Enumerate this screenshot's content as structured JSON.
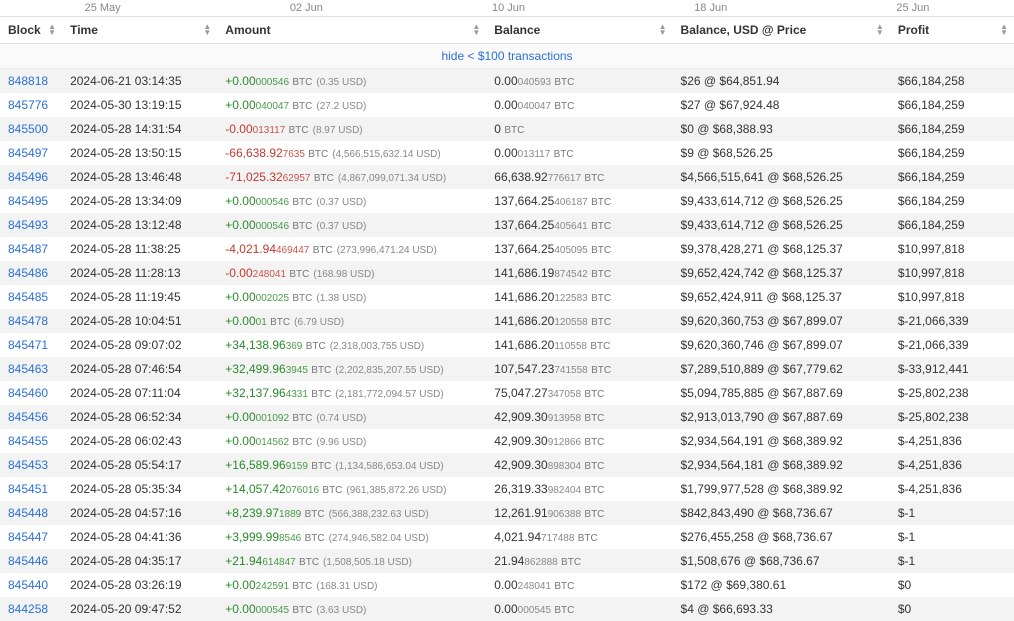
{
  "timeline": [
    "25 May",
    "02 Jun",
    "10 Jun",
    "18 Jun",
    "25 Jun"
  ],
  "headers": {
    "block": "Block",
    "time": "Time",
    "amount": "Amount",
    "balance": "Balance",
    "balance_usd": "Balance, USD @ Price",
    "profit": "Profit"
  },
  "hide_label": "hide < $100 transactions",
  "currency_unit": "BTC",
  "rows": [
    {
      "block": "848818",
      "time": "2024-06-21 03:14:35",
      "amount_sign": "+",
      "amount_int": "0.00",
      "amount_dec": "000546",
      "amount_usd": "(0.35 USD)",
      "balance_int": "0.00",
      "balance_dec": "040593",
      "usd": "$26 @ $64,851.94",
      "profit": "$66,184,258"
    },
    {
      "block": "845776",
      "time": "2024-05-30 13:19:15",
      "amount_sign": "+",
      "amount_int": "0.00",
      "amount_dec": "040047",
      "amount_usd": "(27.2 USD)",
      "balance_int": "0.00",
      "balance_dec": "040047",
      "usd": "$27 @ $67,924.48",
      "profit": "$66,184,259"
    },
    {
      "block": "845500",
      "time": "2024-05-28 14:31:54",
      "amount_sign": "-",
      "amount_int": "0.00",
      "amount_dec": "013117",
      "amount_usd": "(8.97 USD)",
      "balance_int": "0",
      "balance_dec": "",
      "usd": "$0 @ $68,388.93",
      "profit": "$66,184,259"
    },
    {
      "block": "845497",
      "time": "2024-05-28 13:50:15",
      "amount_sign": "-",
      "amount_int": "66,638.92",
      "amount_dec": "7635",
      "amount_usd": "(4,566,515,632.14 USD)",
      "balance_int": "0.00",
      "balance_dec": "013117",
      "usd": "$9 @ $68,526.25",
      "profit": "$66,184,259"
    },
    {
      "block": "845496",
      "time": "2024-05-28 13:46:48",
      "amount_sign": "-",
      "amount_int": "71,025.32",
      "amount_dec": "62957",
      "amount_usd": "(4,867,099,071.34 USD)",
      "balance_int": "66,638.92",
      "balance_dec": "776617",
      "usd": "$4,566,515,641 @ $68,526.25",
      "profit": "$66,184,259"
    },
    {
      "block": "845495",
      "time": "2024-05-28 13:34:09",
      "amount_sign": "+",
      "amount_int": "0.00",
      "amount_dec": "000546",
      "amount_usd": "(0.37 USD)",
      "balance_int": "137,664.25",
      "balance_dec": "406187",
      "usd": "$9,433,614,712 @ $68,526.25",
      "profit": "$66,184,259"
    },
    {
      "block": "845493",
      "time": "2024-05-28 13:12:48",
      "amount_sign": "+",
      "amount_int": "0.00",
      "amount_dec": "000546",
      "amount_usd": "(0.37 USD)",
      "balance_int": "137,664.25",
      "balance_dec": "405641",
      "usd": "$9,433,614,712 @ $68,526.25",
      "profit": "$66,184,259"
    },
    {
      "block": "845487",
      "time": "2024-05-28 11:38:25",
      "amount_sign": "-",
      "amount_int": "4,021.94",
      "amount_dec": "469447",
      "amount_usd": "(273,996,471.24 USD)",
      "balance_int": "137,664.25",
      "balance_dec": "405095",
      "usd": "$9,378,428,271 @ $68,125.37",
      "profit": "$10,997,818"
    },
    {
      "block": "845486",
      "time": "2024-05-28 11:28:13",
      "amount_sign": "-",
      "amount_int": "0.00",
      "amount_dec": "248041",
      "amount_usd": "(168.98 USD)",
      "balance_int": "141,686.19",
      "balance_dec": "874542",
      "usd": "$9,652,424,742 @ $68,125.37",
      "profit": "$10,997,818"
    },
    {
      "block": "845485",
      "time": "2024-05-28 11:19:45",
      "amount_sign": "+",
      "amount_int": "0.00",
      "amount_dec": "002025",
      "amount_usd": "(1.38 USD)",
      "balance_int": "141,686.20",
      "balance_dec": "122583",
      "usd": "$9,652,424,911 @ $68,125.37",
      "profit": "$10,997,818"
    },
    {
      "block": "845478",
      "time": "2024-05-28 10:04:51",
      "amount_sign": "+",
      "amount_int": "0.00",
      "amount_dec": "01",
      "amount_usd": "(6.79 USD)",
      "balance_int": "141,686.20",
      "balance_dec": "120558",
      "usd": "$9,620,360,753 @ $67,899.07",
      "profit": "$-21,066,339"
    },
    {
      "block": "845471",
      "time": "2024-05-28 09:07:02",
      "amount_sign": "+",
      "amount_int": "34,138.96",
      "amount_dec": "369",
      "amount_usd": "(2,318,003,755 USD)",
      "balance_int": "141,686.20",
      "balance_dec": "110558",
      "usd": "$9,620,360,746 @ $67,899.07",
      "profit": "$-21,066,339"
    },
    {
      "block": "845463",
      "time": "2024-05-28 07:46:54",
      "amount_sign": "+",
      "amount_int": "32,499.96",
      "amount_dec": "3945",
      "amount_usd": "(2,202,835,207.55 USD)",
      "balance_int": "107,547.23",
      "balance_dec": "741558",
      "usd": "$7,289,510,889 @ $67,779.62",
      "profit": "$-33,912,441"
    },
    {
      "block": "845460",
      "time": "2024-05-28 07:11:04",
      "amount_sign": "+",
      "amount_int": "32,137.96",
      "amount_dec": "4331",
      "amount_usd": "(2,181,772,094.57 USD)",
      "balance_int": "75,047.27",
      "balance_dec": "347058",
      "usd": "$5,094,785,885 @ $67,887.69",
      "profit": "$-25,802,238"
    },
    {
      "block": "845456",
      "time": "2024-05-28 06:52:34",
      "amount_sign": "+",
      "amount_int": "0.00",
      "amount_dec": "001092",
      "amount_usd": "(0.74 USD)",
      "balance_int": "42,909.30",
      "balance_dec": "913958",
      "usd": "$2,913,013,790 @ $67,887.69",
      "profit": "$-25,802,238"
    },
    {
      "block": "845455",
      "time": "2024-05-28 06:02:43",
      "amount_sign": "+",
      "amount_int": "0.00",
      "amount_dec": "014562",
      "amount_usd": "(9.96 USD)",
      "balance_int": "42,909.30",
      "balance_dec": "912866",
      "usd": "$2,934,564,191 @ $68,389.92",
      "profit": "$-4,251,836"
    },
    {
      "block": "845453",
      "time": "2024-05-28 05:54:17",
      "amount_sign": "+",
      "amount_int": "16,589.96",
      "amount_dec": "9159",
      "amount_usd": "(1,134,586,653.04 USD)",
      "balance_int": "42,909.30",
      "balance_dec": "898304",
      "usd": "$2,934,564,181 @ $68,389.92",
      "profit": "$-4,251,836"
    },
    {
      "block": "845451",
      "time": "2024-05-28 05:35:34",
      "amount_sign": "+",
      "amount_int": "14,057.42",
      "amount_dec": "076016",
      "amount_usd": "(961,385,872.26 USD)",
      "balance_int": "26,319.33",
      "balance_dec": "982404",
      "usd": "$1,799,977,528 @ $68,389.92",
      "profit": "$-4,251,836"
    },
    {
      "block": "845448",
      "time": "2024-05-28 04:57:16",
      "amount_sign": "+",
      "amount_int": "8,239.97",
      "amount_dec": "1889",
      "amount_usd": "(566,388,232.63 USD)",
      "balance_int": "12,261.91",
      "balance_dec": "906388",
      "usd": "$842,843,490 @ $68,736.67",
      "profit": "$-1"
    },
    {
      "block": "845447",
      "time": "2024-05-28 04:41:36",
      "amount_sign": "+",
      "amount_int": "3,999.99",
      "amount_dec": "8546",
      "amount_usd": "(274,946,582.04 USD)",
      "balance_int": "4,021.94",
      "balance_dec": "717488",
      "usd": "$276,455,258 @ $68,736.67",
      "profit": "$-1"
    },
    {
      "block": "845446",
      "time": "2024-05-28 04:35:17",
      "amount_sign": "+",
      "amount_int": "21.94",
      "amount_dec": "614847",
      "amount_usd": "(1,508,505.18 USD)",
      "balance_int": "21.94",
      "balance_dec": "862888",
      "usd": "$1,508,676 @ $68,736.67",
      "profit": "$-1"
    },
    {
      "block": "845440",
      "time": "2024-05-28 03:26:19",
      "amount_sign": "+",
      "amount_int": "0.00",
      "amount_dec": "242591",
      "amount_usd": "(168.31 USD)",
      "balance_int": "0.00",
      "balance_dec": "248041",
      "usd": "$172 @ $69,380.61",
      "profit": "$0"
    },
    {
      "block": "844258",
      "time": "2024-05-20 09:47:52",
      "amount_sign": "+",
      "amount_int": "0.00",
      "amount_dec": "000545",
      "amount_usd": "(3.63 USD)",
      "balance_int": "0.00",
      "balance_dec": "000545",
      "usd": "$4 @ $66,693.33",
      "profit": "$0"
    }
  ]
}
